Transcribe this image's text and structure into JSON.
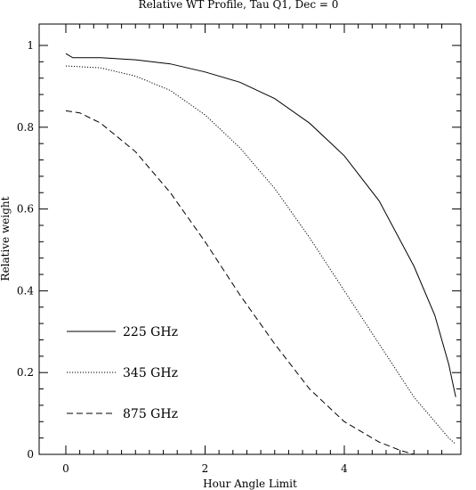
{
  "chart_data": {
    "type": "line",
    "title": "Relative WT Profile, Tau Q1, Dec = 0",
    "xlabel": "Hour Angle Limit",
    "ylabel": "Relative weight",
    "xlim": [
      -0.4,
      6.0
    ],
    "ylim": [
      0,
      1.05
    ],
    "x_ticks": [
      "0",
      "2",
      "4"
    ],
    "y_ticks": [
      "0",
      "0.2",
      "0.4",
      "0.6",
      "0.8",
      "1"
    ],
    "x_tick_values": [
      0,
      2,
      4
    ],
    "y_tick_values": [
      0,
      0.2,
      0.4,
      0.6,
      0.8,
      1
    ],
    "grid": false,
    "legend_position": "bottom-left",
    "series": [
      {
        "name": "225 GHz",
        "style": "solid",
        "x": [
          0,
          0.1,
          0.5,
          1.0,
          1.5,
          2.0,
          2.5,
          3.0,
          3.5,
          4.0,
          4.5,
          5.0,
          5.3,
          5.5,
          5.6
        ],
        "y": [
          0.98,
          0.97,
          0.97,
          0.965,
          0.955,
          0.935,
          0.91,
          0.87,
          0.81,
          0.73,
          0.62,
          0.46,
          0.34,
          0.22,
          0.14
        ]
      },
      {
        "name": "345 GHz",
        "style": "dotted",
        "x": [
          0,
          0.5,
          1.0,
          1.5,
          2.0,
          2.5,
          3.0,
          3.5,
          4.0,
          4.5,
          5.0,
          5.3,
          5.5,
          5.6
        ],
        "y": [
          0.95,
          0.945,
          0.925,
          0.89,
          0.83,
          0.75,
          0.65,
          0.53,
          0.4,
          0.27,
          0.14,
          0.08,
          0.04,
          0.025
        ]
      },
      {
        "name": "875 GHz",
        "style": "dashed",
        "x": [
          0,
          0.2,
          0.5,
          1.0,
          1.5,
          2.0,
          2.5,
          3.0,
          3.5,
          4.0,
          4.5,
          4.8,
          5.0
        ],
        "y": [
          0.84,
          0.835,
          0.81,
          0.74,
          0.64,
          0.52,
          0.39,
          0.27,
          0.16,
          0.08,
          0.03,
          0.01,
          0.0
        ]
      }
    ]
  }
}
